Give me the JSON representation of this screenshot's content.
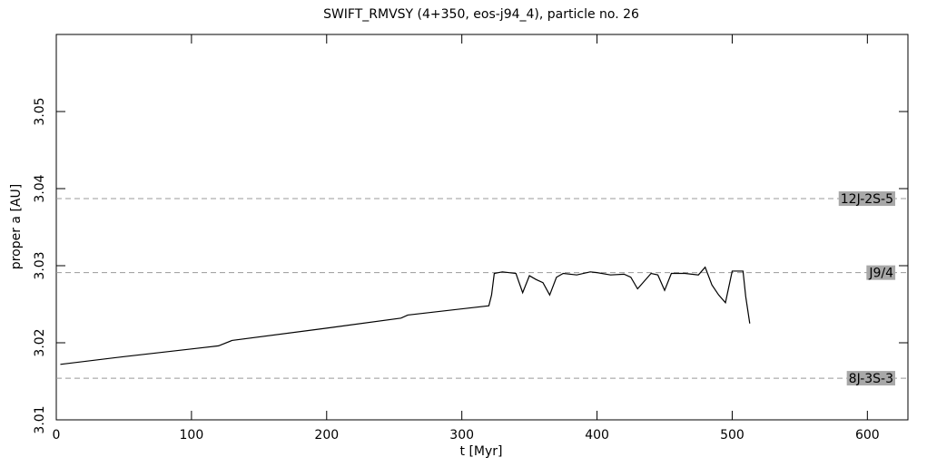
{
  "chart_data": {
    "type": "line",
    "title": "SWIFT_RMVSY (4+350, eos-j94_4), particle no. 26",
    "x_label": "t [Myr]",
    "y_label": "proper a [AU]",
    "x": [
      3,
      50,
      100,
      120,
      130,
      200,
      255,
      260,
      320,
      322,
      324,
      330,
      340,
      345,
      350,
      355,
      360,
      365,
      370,
      375,
      385,
      395,
      400,
      410,
      420,
      425,
      430,
      440,
      445,
      450,
      455,
      465,
      475,
      480,
      485,
      490,
      495,
      500,
      508,
      510,
      513
    ],
    "values": [
      3.0172,
      3.0182,
      3.0192,
      3.0196,
      3.0203,
      3.0219,
      3.0232,
      3.0236,
      3.0248,
      3.0262,
      3.029,
      3.0292,
      3.029,
      3.0265,
      3.0287,
      3.0282,
      3.0278,
      3.0262,
      3.0285,
      3.029,
      3.0288,
      3.0292,
      3.0291,
      3.0288,
      3.0289,
      3.0285,
      3.027,
      3.029,
      3.0288,
      3.0268,
      3.029,
      3.029,
      3.0288,
      3.0298,
      3.0275,
      3.0262,
      3.0252,
      3.0293,
      3.0293,
      3.026,
      3.0225
    ],
    "color": "#000000",
    "xlim": [
      0,
      630
    ],
    "xticks": [
      0,
      100,
      200,
      300,
      400,
      500,
      600
    ],
    "ylim": [
      3.01,
      3.06
    ],
    "yticks": [
      3.01,
      3.02,
      3.03,
      3.04,
      3.05
    ],
    "reference_lines": [
      {
        "label": "12J-2S-5",
        "value": 3.0387
      },
      {
        "label": "J9/4",
        "value": 3.0291
      },
      {
        "label": "8J-3S-3",
        "value": 3.0154
      }
    ]
  }
}
